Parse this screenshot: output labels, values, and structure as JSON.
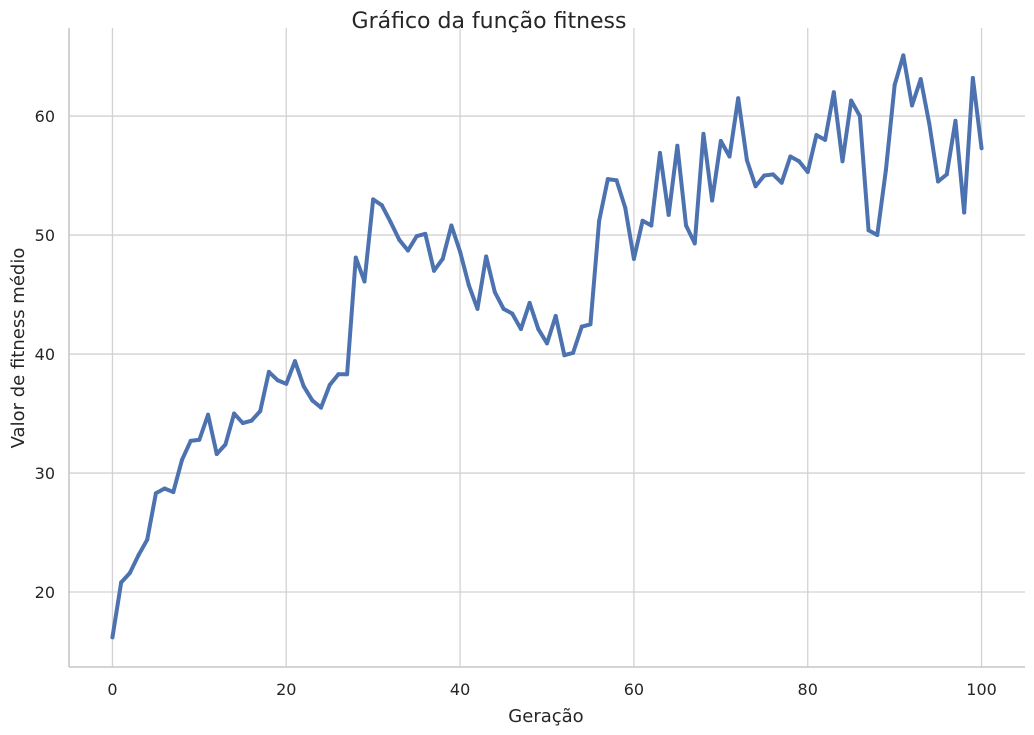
{
  "chart_data": {
    "type": "line",
    "title": "Gráfico da função fitness",
    "xlabel": "Geração",
    "ylabel": "Valor de fitness médio",
    "xlim": [
      -5,
      105
    ],
    "ylim": [
      13.7,
      67.4
    ],
    "xticks": [
      0,
      20,
      40,
      60,
      80,
      100
    ],
    "xtick_labels": [
      "0",
      "20",
      "40",
      "60",
      "80",
      "100"
    ],
    "yticks": [
      20,
      30,
      40,
      50,
      60
    ],
    "ytick_labels": [
      "20",
      "30",
      "40",
      "50",
      "60"
    ],
    "grid": true,
    "line_color": "#4c72b0",
    "x": [
      0,
      1,
      2,
      3,
      4,
      5,
      6,
      7,
      8,
      9,
      10,
      11,
      12,
      13,
      14,
      15,
      16,
      17,
      18,
      19,
      20,
      21,
      22,
      23,
      24,
      25,
      26,
      27,
      28,
      29,
      30,
      31,
      32,
      33,
      34,
      35,
      36,
      37,
      38,
      39,
      40,
      41,
      42,
      43,
      44,
      45,
      46,
      47,
      48,
      49,
      50,
      51,
      52,
      53,
      54,
      55,
      56,
      57,
      58,
      59,
      60,
      61,
      62,
      63,
      64,
      65,
      66,
      67,
      68,
      69,
      70,
      71,
      72,
      73,
      74,
      75,
      76,
      77,
      78,
      79,
      80,
      81,
      82,
      83,
      84,
      85,
      86,
      87,
      88,
      89,
      90,
      91,
      92,
      93,
      94,
      95,
      96,
      97,
      98,
      99,
      100
    ],
    "y": [
      16.2,
      20.8,
      21.6,
      23.1,
      24.4,
      28.3,
      28.7,
      28.4,
      31.1,
      32.7,
      32.8,
      34.9,
      31.6,
      32.4,
      35.0,
      34.2,
      34.4,
      35.2,
      38.5,
      37.8,
      37.5,
      39.4,
      37.3,
      36.1,
      35.5,
      37.4,
      38.3,
      38.3,
      48.1,
      46.1,
      53.0,
      52.5,
      51.1,
      49.6,
      48.7,
      49.9,
      50.1,
      47.0,
      48.0,
      50.8,
      48.6,
      45.8,
      43.8,
      48.2,
      45.2,
      43.8,
      43.4,
      42.1,
      44.3,
      42.1,
      40.9,
      43.2,
      39.9,
      40.1,
      42.3,
      42.5,
      51.2,
      54.7,
      54.6,
      52.3,
      48.0,
      51.2,
      50.8,
      56.9,
      51.7,
      57.5,
      50.8,
      49.3,
      58.5,
      52.9,
      57.9,
      56.6,
      61.5,
      56.3,
      54.1,
      55.0,
      55.1,
      54.4,
      56.6,
      56.2,
      55.3,
      58.4,
      58.0,
      62.0,
      56.2,
      61.3,
      60.0,
      50.4,
      50.0,
      55.5,
      62.6,
      65.1,
      60.9,
      63.1,
      59.3,
      54.5,
      55.1,
      59.6,
      51.9,
      63.2,
      57.3
    ]
  }
}
